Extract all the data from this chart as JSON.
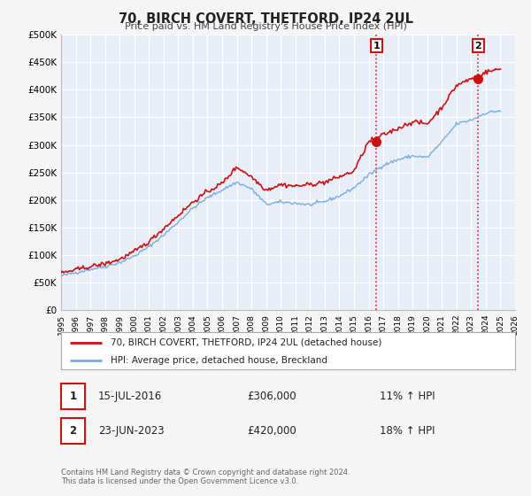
{
  "title": "70, BIRCH COVERT, THETFORD, IP24 2UL",
  "subtitle": "Price paid vs. HM Land Registry's House Price Index (HPI)",
  "hpi_color": "#7aaddc",
  "price_color": "#cc1111",
  "marker_color": "#cc1111",
  "fig_bg_color": "#f5f5f5",
  "plot_bg_color": "#e8eef8",
  "grid_color": "#ffffff",
  "ylim": [
    0,
    500000
  ],
  "yticks": [
    0,
    50000,
    100000,
    150000,
    200000,
    250000,
    300000,
    350000,
    400000,
    450000,
    500000
  ],
  "ytick_labels": [
    "£0",
    "£50K",
    "£100K",
    "£150K",
    "£200K",
    "£250K",
    "£300K",
    "£350K",
    "£400K",
    "£450K",
    "£500K"
  ],
  "xmin_year": 1995,
  "xmax_year": 2026,
  "xtick_years": [
    1995,
    1996,
    1997,
    1998,
    1999,
    2000,
    2001,
    2002,
    2003,
    2004,
    2005,
    2006,
    2007,
    2008,
    2009,
    2010,
    2011,
    2012,
    2013,
    2014,
    2015,
    2016,
    2017,
    2018,
    2019,
    2020,
    2021,
    2022,
    2023,
    2024,
    2025,
    2026
  ],
  "marker1_year": 2016.54,
  "marker1_value": 306000,
  "marker1_label": "1",
  "marker1_date": "15-JUL-2016",
  "marker1_price": "£306,000",
  "marker1_hpi": "11% ↑ HPI",
  "marker2_year": 2023.48,
  "marker2_value": 420000,
  "marker2_label": "2",
  "marker2_date": "23-JUN-2023",
  "marker2_price": "£420,000",
  "marker2_hpi": "18% ↑ HPI",
  "legend_label1": "70, BIRCH COVERT, THETFORD, IP24 2UL (detached house)",
  "legend_label2": "HPI: Average price, detached house, Breckland",
  "footer_line1": "Contains HM Land Registry data © Crown copyright and database right 2024.",
  "footer_line2": "This data is licensed under the Open Government Licence v3.0."
}
